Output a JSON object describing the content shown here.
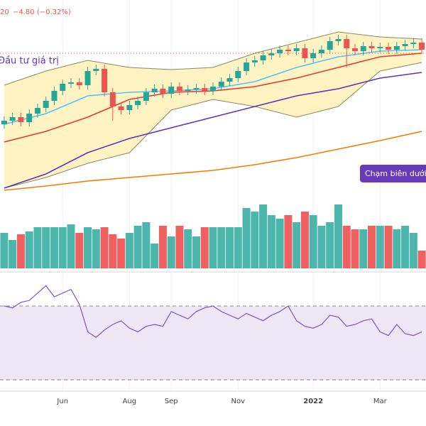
{
  "chart_data": {
    "type": "candlestick",
    "header": {
      "price_tail": "20",
      "change": "−4.80 (−0.32%)",
      "color": "#ef5350"
    },
    "annotations": {
      "label": "Đầu tư giá trị",
      "button": "Chạm biên dưới"
    },
    "xlim": [
      -0.5,
      50.5
    ],
    "xticks": [
      {
        "value": 7,
        "label": "Jun"
      },
      {
        "value": 15,
        "label": "Aug"
      },
      {
        "value": 20,
        "label": "Sep"
      },
      {
        "value": 28,
        "label": "Nov"
      },
      {
        "value": 37,
        "label": "2022"
      },
      {
        "value": 45,
        "label": "Mar"
      }
    ],
    "grid": true,
    "ylim": [
      1306,
      1600
    ],
    "price_line": 1525,
    "up_color": "#26a69a",
    "down_color": "#ef5350",
    "open": [
      1425,
      1430,
      1435,
      1428,
      1440,
      1448,
      1458,
      1472,
      1482,
      1484,
      1480,
      1500,
      1503,
      1470,
      1450,
      1445,
      1452,
      1458,
      1470,
      1475,
      1468,
      1478,
      1472,
      1474,
      1476,
      1472,
      1478,
      1485,
      1490,
      1500,
      1512,
      1515,
      1522,
      1525,
      1530,
      1528,
      1532,
      1518,
      1525,
      1530,
      1542,
      1545,
      1532,
      1528,
      1535,
      1532,
      1534,
      1530,
      1535,
      1538,
      1540
    ],
    "high": [
      1436,
      1441,
      1441,
      1446,
      1454,
      1464,
      1478,
      1488,
      1490,
      1490,
      1506,
      1509,
      1509,
      1476,
      1456,
      1458,
      1464,
      1476,
      1481,
      1481,
      1484,
      1484,
      1480,
      1482,
      1482,
      1484,
      1491,
      1496,
      1506,
      1518,
      1521,
      1528,
      1531,
      1536,
      1536,
      1538,
      1538,
      1531,
      1536,
      1548,
      1551,
      1551,
      1538,
      1541,
      1541,
      1540,
      1540,
      1541,
      1544,
      1546,
      1546
    ],
    "low": [
      1419,
      1424,
      1422,
      1422,
      1434,
      1442,
      1452,
      1466,
      1476,
      1474,
      1474,
      1494,
      1464,
      1430,
      1439,
      1439,
      1446,
      1452,
      1464,
      1462,
      1462,
      1466,
      1466,
      1468,
      1466,
      1466,
      1472,
      1479,
      1484,
      1494,
      1506,
      1509,
      1516,
      1519,
      1522,
      1522,
      1512,
      1512,
      1519,
      1524,
      1536,
      1505,
      1522,
      1522,
      1526,
      1526,
      1524,
      1524,
      1529,
      1532,
      1524
    ],
    "close": [
      1430,
      1435,
      1428,
      1440,
      1448,
      1458,
      1472,
      1482,
      1484,
      1480,
      1500,
      1503,
      1470,
      1450,
      1445,
      1452,
      1458,
      1470,
      1475,
      1468,
      1478,
      1472,
      1474,
      1476,
      1472,
      1478,
      1485,
      1490,
      1500,
      1512,
      1515,
      1522,
      1525,
      1530,
      1528,
      1532,
      1518,
      1525,
      1530,
      1542,
      1545,
      1532,
      1528,
      1535,
      1532,
      1534,
      1530,
      1535,
      1538,
      1540,
      1530
    ],
    "band": {
      "color": "#8a8a5a",
      "fill": "#fff3c4",
      "x": [
        0,
        5,
        10,
        15,
        20,
        25,
        30,
        35,
        40,
        45,
        50
      ],
      "upper": [
        1480,
        1500,
        1515,
        1505,
        1502,
        1505,
        1525,
        1540,
        1555,
        1548,
        1545
      ],
      "lower": [
        1335,
        1350,
        1370,
        1385,
        1445,
        1460,
        1450,
        1435,
        1450,
        1500,
        1512
      ]
    },
    "overlays": [
      {
        "color": "#f57c00",
        "x": [
          0,
          5,
          10,
          15,
          20,
          25,
          30,
          35,
          40,
          45,
          50
        ],
        "values": [
          1332,
          1338,
          1345,
          1350,
          1355,
          1360,
          1368,
          1378,
          1390,
          1402,
          1415
        ]
      },
      {
        "color": "#5e35b1",
        "x": [
          0,
          5,
          10,
          15,
          20,
          25,
          30,
          35,
          40,
          45,
          50
        ],
        "values": [
          1335,
          1355,
          1385,
          1405,
          1420,
          1435,
          1450,
          1465,
          1475,
          1490,
          1498
        ]
      },
      {
        "color": "#e53935",
        "x": [
          0,
          5,
          10,
          15,
          20,
          25,
          30,
          35,
          40,
          45,
          50
        ],
        "values": [
          1400,
          1415,
          1435,
          1460,
          1470,
          1472,
          1478,
          1490,
          1505,
          1520,
          1525
        ]
      },
      {
        "color": "#4fc3f7",
        "x": [
          0,
          5,
          10,
          15,
          20,
          25,
          30,
          35,
          40,
          45,
          50
        ],
        "values": [
          1425,
          1440,
          1465,
          1470,
          1472,
          1475,
          1485,
          1505,
          1520,
          1528,
          1530
        ]
      }
    ],
    "volume": {
      "ylim": [
        0,
        100
      ],
      "up_color": "#4db6ac",
      "down_color": "#f06060",
      "values": [
        50,
        40,
        48,
        52,
        58,
        58,
        58,
        58,
        62,
        50,
        58,
        55,
        58,
        48,
        42,
        50,
        60,
        65,
        35,
        60,
        45,
        60,
        55,
        45,
        58,
        58,
        58,
        58,
        58,
        85,
        80,
        90,
        75,
        70,
        75,
        65,
        80,
        75,
        60,
        65,
        90,
        60,
        55,
        55,
        60,
        60,
        60,
        55,
        60,
        50,
        25
      ]
    },
    "rsi": {
      "ylim": [
        25,
        85
      ],
      "bands": [
        30,
        70
      ],
      "color": "#7e57c2",
      "fill": "#ede7f6",
      "values": [
        70,
        69,
        72,
        73,
        77,
        81,
        75,
        77,
        79,
        71,
        56,
        53,
        57,
        60,
        62,
        58,
        56,
        59,
        60,
        59,
        67,
        65,
        63,
        67,
        69,
        70,
        67,
        65,
        63,
        66,
        64,
        62,
        65,
        67,
        70,
        62,
        59,
        58,
        60,
        65,
        64,
        59,
        60,
        62,
        63,
        56,
        54,
        60,
        55,
        54,
        56
      ]
    }
  }
}
